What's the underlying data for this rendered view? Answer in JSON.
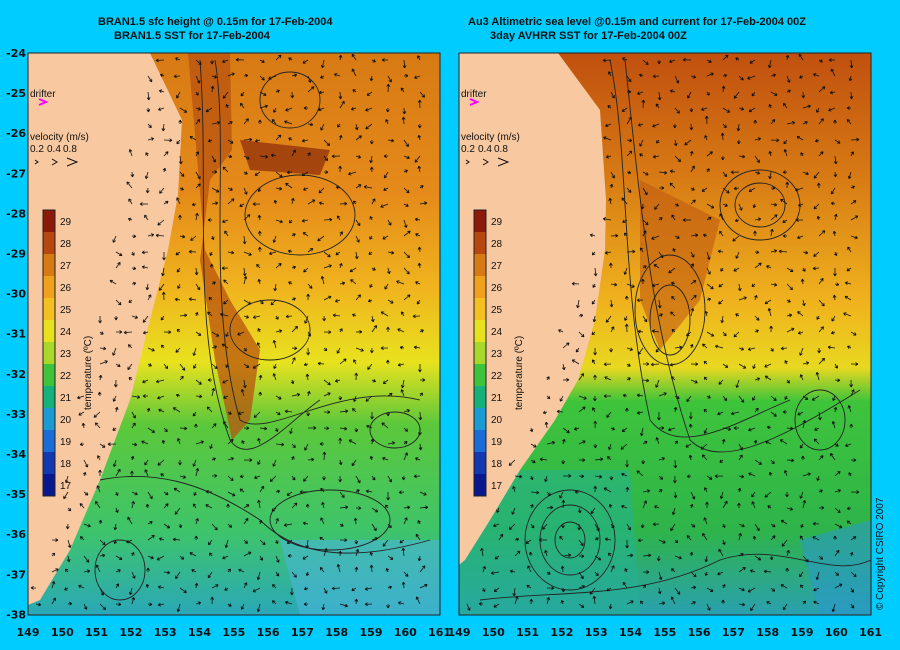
{
  "left_panel": {
    "title_line1": "BRAN1.5 sfc height @ 0.15m for 17-Feb-2004",
    "title_line2": "BRAN1.5 SST for 17-Feb-2004",
    "drifter_label": "drifter",
    "velocity_label": "velocity (m/s)",
    "velocity_scale": [
      "0.2",
      "0.4",
      "0.8"
    ]
  },
  "right_panel": {
    "title_line1": "Au3 Altimetric sea level  @0.15m and current for 17-Feb-2004 00Z",
    "title_line2": "3day AVHRR SST for 17-Feb-2004 00Z",
    "drifter_label": "drifter",
    "velocity_label": "velocity (m/s)",
    "velocity_scale": [
      "0.2",
      "0.4",
      "0.8"
    ]
  },
  "colorbar": {
    "label": "temperature (ºC)",
    "ticks": [
      "29",
      "28",
      "27",
      "26",
      "25",
      "24",
      "23",
      "22",
      "21",
      "20",
      "19",
      "18",
      "17"
    ],
    "colors": [
      "#8b1a0a",
      "#b8460f",
      "#d77a14",
      "#f0a01a",
      "#f4c020",
      "#e8e21e",
      "#a8d82a",
      "#3ec43a",
      "#14b27a",
      "#1c9ad4",
      "#1a6cd8",
      "#1438b0",
      "#0a1890"
    ]
  },
  "axes": {
    "x_ticks": [
      "149",
      "150",
      "151",
      "152",
      "153",
      "154",
      "155",
      "156",
      "157",
      "158",
      "159",
      "160",
      "161"
    ],
    "y_ticks": [
      "-24",
      "-25",
      "-26",
      "-27",
      "-28",
      "-29",
      "-30",
      "-31",
      "-32",
      "-33",
      "-34",
      "-35",
      "-36",
      "-37",
      "-38"
    ]
  },
  "copyright": "© Copyright CSIRO 2007",
  "colors": {
    "background": "#00ccff",
    "land": "#f8c8a0",
    "drifter": "#ff00ff"
  }
}
